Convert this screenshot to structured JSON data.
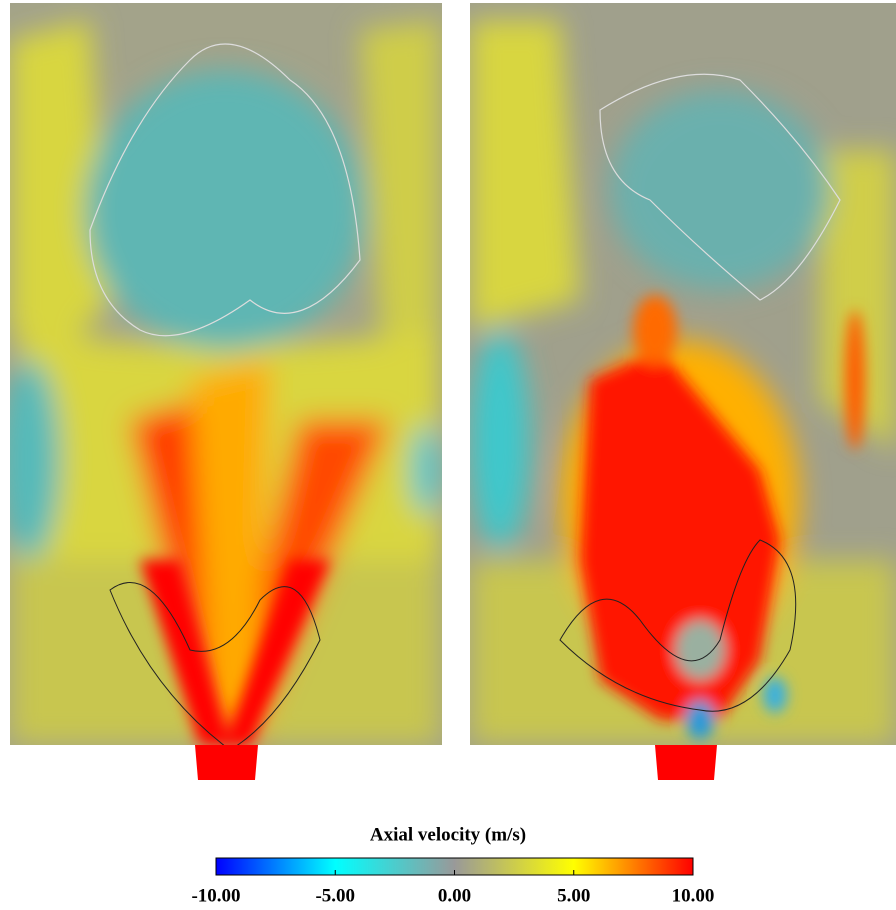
{
  "colorbar": {
    "title": "Axial velocity (m/s)",
    "range": [
      -10,
      10
    ],
    "ticks": [
      {
        "value": -10,
        "label": "-10.00"
      },
      {
        "value": -5,
        "label": "-5.00"
      },
      {
        "value": 0,
        "label": "0.00"
      },
      {
        "value": 5,
        "label": "5.00"
      },
      {
        "value": 10,
        "label": "10.00"
      }
    ]
  }
}
